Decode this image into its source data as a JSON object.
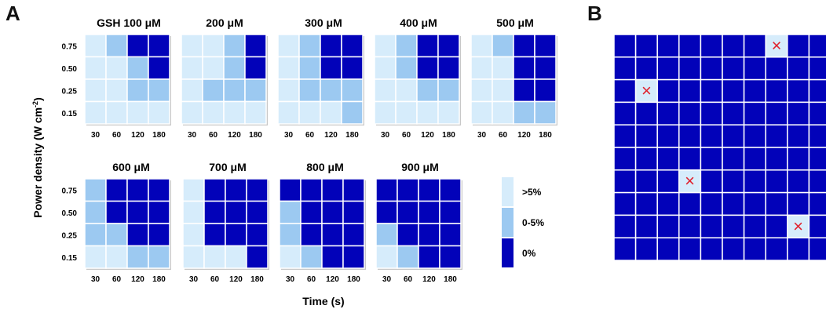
{
  "panel_a_label": "A",
  "panel_b_label": "B",
  "y_axis_label": "Power density (W cm",
  "y_axis_label_sup": "-2",
  "y_axis_label_end": ")",
  "x_axis_label": "Time (s)",
  "colors": {
    "high": "#d6ecfb",
    "mid": "#9cc9f1",
    "zero": "#0202b9",
    "grid_line": "#ffffff",
    "mark": "#e0202c"
  },
  "legend": [
    {
      "label": ">5%",
      "level": "high"
    },
    {
      "label": "0-5%",
      "level": "mid"
    },
    {
      "label": "0%",
      "level": "zero"
    }
  ],
  "chart_data": [
    {
      "type": "heatmap",
      "panel": "A",
      "x_ticks": [
        "30",
        "60",
        "120",
        "180"
      ],
      "y_ticks": [
        "0.75",
        "0.50",
        "0.25",
        "0.15"
      ],
      "levels": [
        "high",
        "mid",
        "zero"
      ],
      "subplots": [
        {
          "title": "GSH 100 μM",
          "grid": [
            [
              0,
              1,
              2,
              2
            ],
            [
              0,
              0,
              1,
              2
            ],
            [
              0,
              0,
              1,
              1
            ],
            [
              0,
              0,
              0,
              0
            ]
          ]
        },
        {
          "title": "200 μM",
          "grid": [
            [
              0,
              0,
              1,
              2
            ],
            [
              0,
              0,
              1,
              2
            ],
            [
              0,
              1,
              1,
              1
            ],
            [
              0,
              0,
              0,
              0
            ]
          ]
        },
        {
          "title": "300 μM",
          "grid": [
            [
              0,
              1,
              2,
              2
            ],
            [
              0,
              1,
              2,
              2
            ],
            [
              0,
              1,
              1,
              1
            ],
            [
              0,
              0,
              0,
              1
            ]
          ]
        },
        {
          "title": "400 μM",
          "grid": [
            [
              0,
              1,
              2,
              2
            ],
            [
              0,
              1,
              2,
              2
            ],
            [
              0,
              0,
              1,
              1
            ],
            [
              0,
              0,
              0,
              0
            ]
          ]
        },
        {
          "title": "500 μM",
          "grid": [
            [
              0,
              1,
              2,
              2
            ],
            [
              0,
              0,
              2,
              2
            ],
            [
              0,
              0,
              2,
              2
            ],
            [
              0,
              0,
              1,
              1
            ]
          ]
        },
        {
          "title": "600 μM",
          "grid": [
            [
              1,
              2,
              2,
              2
            ],
            [
              1,
              2,
              2,
              2
            ],
            [
              1,
              1,
              2,
              2
            ],
            [
              0,
              0,
              1,
              1
            ]
          ]
        },
        {
          "title": "700 μM",
          "grid": [
            [
              0,
              2,
              2,
              2
            ],
            [
              0,
              2,
              2,
              2
            ],
            [
              0,
              2,
              2,
              2
            ],
            [
              0,
              0,
              0,
              2
            ]
          ]
        },
        {
          "title": "800 μM",
          "grid": [
            [
              2,
              2,
              2,
              2
            ],
            [
              1,
              2,
              2,
              2
            ],
            [
              1,
              2,
              2,
              2
            ],
            [
              0,
              1,
              2,
              2
            ]
          ]
        },
        {
          "title": "900 μM",
          "grid": [
            [
              2,
              2,
              2,
              2
            ],
            [
              2,
              2,
              2,
              2
            ],
            [
              1,
              2,
              2,
              2
            ],
            [
              0,
              1,
              2,
              2
            ]
          ]
        }
      ]
    },
    {
      "type": "heatmap",
      "panel": "B",
      "rows": 10,
      "cols": 10,
      "fill": "zero",
      "marked_cells": [
        {
          "row": 0,
          "col": 7
        },
        {
          "row": 2,
          "col": 1
        },
        {
          "row": 6,
          "col": 3
        },
        {
          "row": 8,
          "col": 8
        }
      ],
      "mark_symbol": "×"
    }
  ]
}
